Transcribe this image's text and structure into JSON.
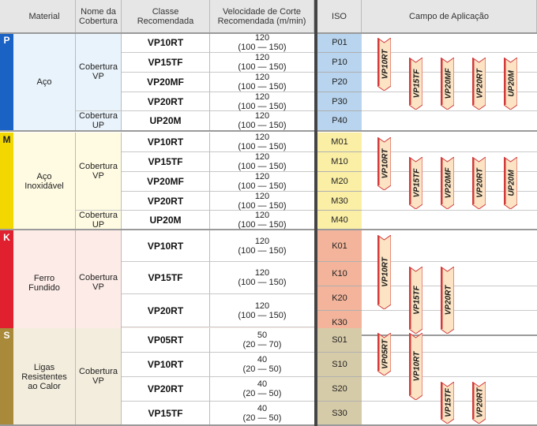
{
  "headers": {
    "material": "Material",
    "coating_name": "Nome da Cobertura",
    "grade": "Classe Recomendada",
    "speed": "Velocidade de Corte Recomendada (m/min)",
    "iso": "ISO",
    "field": "Campo de Aplicação"
  },
  "groups": [
    {
      "letter": "P",
      "material": "Aço",
      "color": "#1a63c4",
      "bg": "#e9f3fb",
      "iso_bg": "#b8d4ee",
      "coatings": [
        {
          "label": "Cobertura VP"
        },
        {
          "label": "Cobertura UP"
        }
      ],
      "rows": [
        {
          "grade": "VP10RT",
          "speed": "120",
          "range": "(100 — 150)",
          "iso": "P01"
        },
        {
          "grade": "VP15TF",
          "speed": "120",
          "range": "(100 — 150)",
          "iso": "P10"
        },
        {
          "grade": "VP20MF",
          "speed": "120",
          "range": "(100 — 150)",
          "iso": "P20"
        },
        {
          "grade": "VP20RT",
          "speed": "120",
          "range": "(100 — 150)",
          "iso": "P30"
        },
        {
          "grade": "UP20M",
          "speed": "120",
          "range": "(100 — 150)",
          "iso": "P40"
        }
      ],
      "application": [
        {
          "grade": "VP10RT",
          "from": "P01",
          "to": "P20"
        },
        {
          "grade": "VP15TF",
          "from": "P10",
          "to": "P30"
        },
        {
          "grade": "VP20MF",
          "from": "P10",
          "to": "P30"
        },
        {
          "grade": "VP20RT",
          "from": "P10",
          "to": "P30"
        },
        {
          "grade": "UP20M",
          "from": "P10",
          "to": "P30"
        }
      ]
    },
    {
      "letter": "M",
      "material": "Aço Inoxidável",
      "color": "#f2d800",
      "bg": "#fffbe2",
      "iso_bg": "#fbefa6",
      "coatings": [
        {
          "label": "Cobertura VP"
        },
        {
          "label": "Cobertura UP"
        }
      ],
      "rows": [
        {
          "grade": "VP10RT",
          "speed": "120",
          "range": "(100 — 150)",
          "iso": "M01"
        },
        {
          "grade": "VP15TF",
          "speed": "120",
          "range": "(100 — 150)",
          "iso": "M10"
        },
        {
          "grade": "VP20MF",
          "speed": "120",
          "range": "(100 — 150)",
          "iso": "M20"
        },
        {
          "grade": "VP20RT",
          "speed": "120",
          "range": "(100 — 150)",
          "iso": "M30"
        },
        {
          "grade": "UP20M",
          "speed": "120",
          "range": "(100 — 150)",
          "iso": "M40"
        }
      ],
      "application": [
        {
          "grade": "VP10RT",
          "from": "M01",
          "to": "M20"
        },
        {
          "grade": "VP15TF",
          "from": "M10",
          "to": "M30"
        },
        {
          "grade": "VP20MF",
          "from": "M10",
          "to": "M30"
        },
        {
          "grade": "VP20RT",
          "from": "M10",
          "to": "M30"
        },
        {
          "grade": "UP20M",
          "from": "M10",
          "to": "M30"
        }
      ]
    },
    {
      "letter": "K",
      "material": "Ferro Fundido",
      "color": "#e0202e",
      "bg": "#fcebe6",
      "iso_bg": "#f3b49b",
      "coatings": [
        {
          "label": "Cobertura VP"
        }
      ],
      "rows": [
        {
          "grade": "VP10RT",
          "speed": "120",
          "range": "(100 — 150)",
          "iso": "K01"
        },
        {
          "grade": "VP15TF",
          "speed": "120",
          "range": "(100 — 150)",
          "iso": "K10"
        },
        {
          "grade": "VP20RT",
          "speed": "120",
          "range": "(100 — 150)",
          "iso": "K20"
        },
        {
          "iso": "K30"
        }
      ],
      "application": [
        {
          "grade": "VP10RT",
          "from": "K01",
          "to": "K20"
        },
        {
          "grade": "VP15TF",
          "from": "K10",
          "to": "K30"
        },
        {
          "grade": "VP20RT",
          "from": "K10",
          "to": "K30"
        }
      ]
    },
    {
      "letter": "S",
      "material": "Ligas Resistentes ao Calor",
      "color": "#a88a3a",
      "bg": "#f3eddd",
      "iso_bg": "#d6cba8",
      "coatings": [
        {
          "label": "Cobertura VP"
        }
      ],
      "rows": [
        {
          "grade": "VP05RT",
          "speed": "50",
          "range": "(20 — 70)",
          "iso": "S01"
        },
        {
          "grade": "VP10RT",
          "speed": "40",
          "range": "(20 — 50)",
          "iso": "S10"
        },
        {
          "grade": "VP20RT",
          "speed": "40",
          "range": "(20 — 50)",
          "iso": "S20"
        },
        {
          "grade": "VP15TF",
          "speed": "40",
          "range": "(20 — 50)",
          "iso": "S30"
        }
      ],
      "application": [
        {
          "grade": "VP05RT",
          "from": "S01",
          "to": "S10"
        },
        {
          "grade": "VP10RT",
          "from": "S01",
          "to": "S20"
        },
        {
          "grade": "VP15TF",
          "from": "S20",
          "to": "S30"
        },
        {
          "grade": "VP20RT",
          "from": "S20",
          "to": "S30"
        }
      ]
    }
  ],
  "chip_colors": {
    "fill": "#fbe3c3",
    "edge": "#d23a3a",
    "text": "#1a1a1a"
  }
}
